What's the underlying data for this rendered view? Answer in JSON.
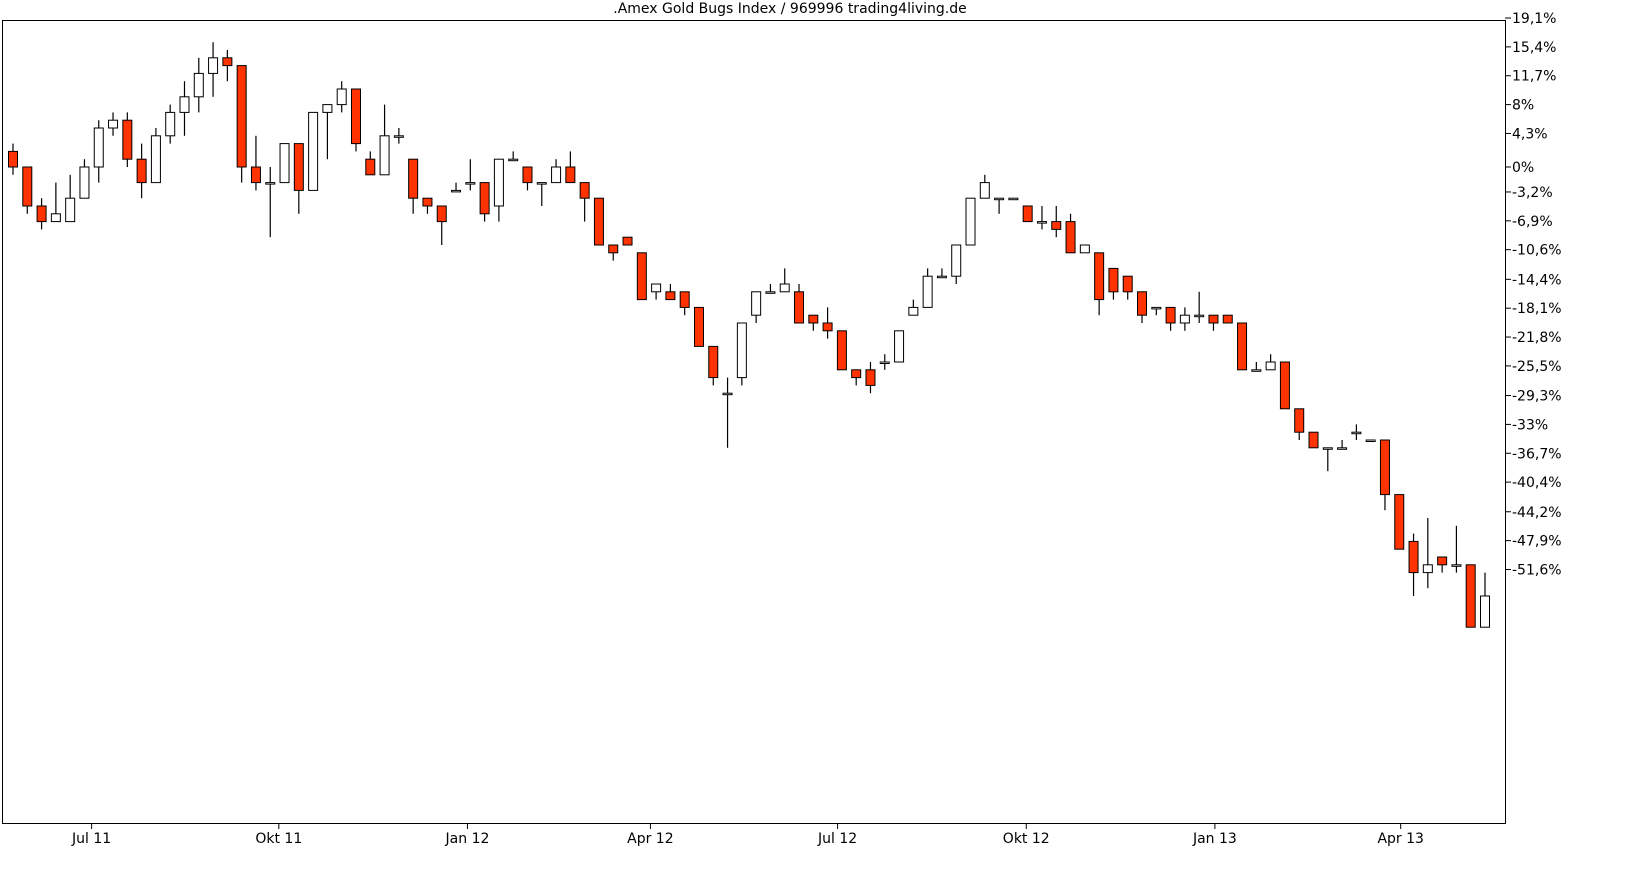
{
  "title": ".Amex Gold Bugs Index / 969996 trading4living.de",
  "colors": {
    "down": "#ff3300",
    "up": "#ffffff",
    "outline": "#000000"
  },
  "chart_data": {
    "type": "candlestick",
    "title": ".Amex Gold Bugs Index / 969996 trading4living.de",
    "y_unit": "%",
    "ylim": [
      -56,
      20
    ],
    "y_ticks": [
      19.1,
      15.4,
      11.7,
      8,
      4.3,
      0,
      -3.2,
      -6.9,
      -10.6,
      -14.4,
      -18.1,
      -21.8,
      -25.5,
      -29.3,
      -33,
      -36.7,
      -40.4,
      -44.2,
      -47.9,
      -51.6
    ],
    "y_tick_labels": [
      "19,1%",
      "15,4%",
      "11,7%",
      "8%",
      "4,3%",
      "0%",
      "-3,2%",
      "-6,9%",
      "-10,6%",
      "-14,4%",
      "-18,1%",
      "-21,8%",
      "-25,5%",
      "-29,3%",
      "-33%",
      "-36,7%",
      "-40,4%",
      "-44,2%",
      "-47,9%",
      "-51,6%"
    ],
    "x_ticks": [
      {
        "label": "Jul 11",
        "index": 5.5
      },
      {
        "label": "Okt 11",
        "index": 18.6
      },
      {
        "label": "Jan 12",
        "index": 31.8
      },
      {
        "label": "Apr 12",
        "index": 44.6
      },
      {
        "label": "Jul 12",
        "index": 57.7
      },
      {
        "label": "Okt 12",
        "index": 70.9
      },
      {
        "label": "Jan 13",
        "index": 84.1
      },
      {
        "label": "Apr 13",
        "index": 97.1
      }
    ],
    "candles": [
      [
        2,
        0,
        3,
        -1
      ],
      [
        0,
        -5,
        0,
        -6
      ],
      [
        -5,
        -7,
        -4,
        -8
      ],
      [
        -7,
        -6,
        -2,
        -7
      ],
      [
        -7,
        -4,
        -1,
        -7
      ],
      [
        -4,
        0,
        1,
        -4
      ],
      [
        0,
        5,
        6,
        -2
      ],
      [
        5,
        6,
        7,
        4
      ],
      [
        6,
        1,
        7,
        0
      ],
      [
        1,
        -2,
        3,
        -4
      ],
      [
        -2,
        4,
        5,
        -2
      ],
      [
        4,
        7,
        8,
        3
      ],
      [
        7,
        9,
        11,
        4
      ],
      [
        9,
        12,
        14,
        7
      ],
      [
        12,
        14,
        16,
        9
      ],
      [
        14,
        13,
        15,
        11
      ],
      [
        13,
        0,
        13,
        -2
      ],
      [
        0,
        -2,
        4,
        -3
      ],
      [
        -2,
        -2,
        0,
        -9
      ],
      [
        -2,
        3,
        3,
        -2
      ],
      [
        3,
        -3,
        3,
        -6
      ],
      [
        -3,
        7,
        7,
        -3
      ],
      [
        7,
        8,
        8,
        1
      ],
      [
        8,
        10,
        11,
        7
      ],
      [
        10,
        3,
        10,
        2
      ],
      [
        1,
        -1,
        2,
        -1
      ],
      [
        -1,
        4,
        8,
        -1
      ],
      [
        4,
        4,
        5,
        3
      ],
      [
        1,
        -4,
        1,
        -6
      ],
      [
        -4,
        -5,
        -4,
        -6
      ],
      [
        -5,
        -7,
        -7,
        -10
      ],
      [
        -3,
        -3,
        -2,
        -3
      ],
      [
        -2,
        -2,
        1,
        -3
      ],
      [
        -2,
        -6,
        -2,
        -7
      ],
      [
        -5,
        1,
        1,
        -7
      ],
      [
        1,
        1,
        2,
        1
      ],
      [
        0,
        -2,
        0,
        -3
      ],
      [
        -2,
        -2,
        -2,
        -5
      ],
      [
        -2,
        0,
        1,
        -2
      ],
      [
        0,
        -2,
        2,
        -2
      ],
      [
        -2,
        -4,
        -2,
        -7
      ],
      [
        -4,
        -10,
        -4,
        -10
      ],
      [
        -10,
        -11,
        -10,
        -12
      ],
      [
        -9,
        -10,
        -9,
        -10
      ],
      [
        -11,
        -17,
        -11,
        -17
      ],
      [
        -16,
        -15,
        -15,
        -17
      ],
      [
        -16,
        -17,
        -15,
        -17
      ],
      [
        -16,
        -18,
        -16,
        -19
      ],
      [
        -18,
        -23,
        -18,
        -23
      ],
      [
        -23,
        -27,
        -23,
        -28
      ],
      [
        -29,
        -29,
        -27,
        -36
      ],
      [
        -27,
        -20,
        -20,
        -28
      ],
      [
        -19,
        -16,
        -16,
        -20
      ],
      [
        -16,
        -16,
        -15,
        -16
      ],
      [
        -16,
        -15,
        -13,
        -15
      ],
      [
        -16,
        -20,
        -15,
        -20
      ],
      [
        -19,
        -20,
        -19,
        -21
      ],
      [
        -20,
        -21,
        -18,
        -22
      ],
      [
        -21,
        -26,
        -21,
        -26
      ],
      [
        -26,
        -27,
        -26,
        -28
      ],
      [
        -26,
        -28,
        -25,
        -29
      ],
      [
        -25,
        -25,
        -24,
        -26
      ],
      [
        -25,
        -21,
        -21,
        -25
      ],
      [
        -19,
        -18,
        -17,
        -19
      ],
      [
        -18,
        -14,
        -13,
        -18
      ],
      [
        -14,
        -14,
        -13,
        -14
      ],
      [
        -14,
        -10,
        -10,
        -15
      ],
      [
        -10,
        -4,
        -4,
        -10
      ],
      [
        -4,
        -2,
        -1,
        -4
      ],
      [
        -4,
        -4,
        -4,
        -6
      ],
      [
        -4,
        -4,
        -4,
        -4
      ],
      [
        -5,
        -7,
        -5,
        -7
      ],
      [
        -7,
        -7,
        -5,
        -8
      ],
      [
        -7,
        -8,
        -5,
        -9
      ],
      [
        -7,
        -11,
        -6,
        -11
      ],
      [
        -11,
        -10,
        -10,
        -11
      ],
      [
        -11,
        -17,
        -11,
        -19
      ],
      [
        -13,
        -16,
        -13,
        -17
      ],
      [
        -14,
        -16,
        -14,
        -17
      ],
      [
        -16,
        -19,
        -16,
        -20
      ],
      [
        -18,
        -18,
        -18,
        -19
      ],
      [
        -18,
        -20,
        -18,
        -21
      ],
      [
        -20,
        -19,
        -18,
        -21
      ],
      [
        -19,
        -19,
        -16,
        -20
      ],
      [
        -19,
        -20,
        -19,
        -21
      ],
      [
        -19,
        -20,
        -19,
        -20
      ],
      [
        -20,
        -26,
        -20,
        -26
      ],
      [
        -26,
        -26,
        -25,
        -26
      ],
      [
        -26,
        -25,
        -24,
        -26
      ],
      [
        -25,
        -31,
        -25,
        -31
      ],
      [
        -31,
        -34,
        -31,
        -35
      ],
      [
        -34,
        -36,
        -34,
        -36
      ],
      [
        -36,
        -36,
        -36,
        -39
      ],
      [
        -36,
        -36,
        -35,
        -36
      ],
      [
        -34,
        -34,
        -33,
        -35
      ],
      [
        -35,
        -35,
        -35,
        -35
      ],
      [
        -35,
        -42,
        -35,
        -44
      ],
      [
        -42,
        -49,
        -42,
        -49
      ],
      [
        -48,
        -52,
        -47,
        -55
      ],
      [
        -52,
        -51,
        -45,
        -54
      ],
      [
        -50,
        -51,
        -50,
        -52
      ],
      [
        -51,
        -51,
        -46,
        -52
      ],
      [
        -51,
        -59,
        -51,
        -59
      ],
      [
        -59,
        -55,
        -52,
        -59
      ]
    ]
  }
}
